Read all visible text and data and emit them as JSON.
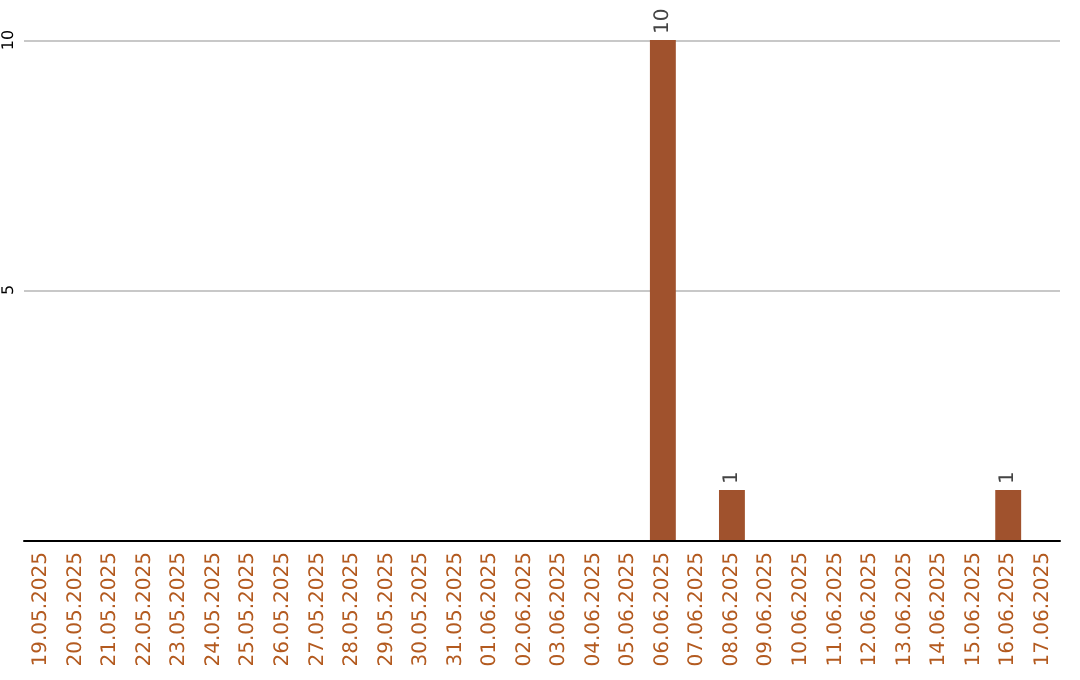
{
  "chart_data": {
    "type": "bar",
    "categories": [
      "19.05.2025",
      "20.05.2025",
      "21.05.2025",
      "22.05.2025",
      "23.05.2025",
      "24.05.2025",
      "25.05.2025",
      "26.05.2025",
      "27.05.2025",
      "28.05.2025",
      "29.05.2025",
      "30.05.2025",
      "31.05.2025",
      "01.06.2025",
      "02.06.2025",
      "03.06.2025",
      "04.06.2025",
      "05.06.2025",
      "06.06.2025",
      "07.06.2025",
      "08.06.2025",
      "09.06.2025",
      "10.06.2025",
      "11.06.2025",
      "12.06.2025",
      "13.06.2025",
      "14.06.2025",
      "15.06.2025",
      "16.06.2025",
      "17.06.2025"
    ],
    "values": [
      0,
      0,
      0,
      0,
      0,
      0,
      0,
      0,
      0,
      0,
      0,
      0,
      0,
      0,
      0,
      0,
      0,
      0,
      10,
      0,
      1,
      0,
      0,
      0,
      0,
      0,
      0,
      0,
      1,
      0
    ],
    "value_labels": [
      null,
      null,
      null,
      null,
      null,
      null,
      null,
      null,
      null,
      null,
      null,
      null,
      null,
      null,
      null,
      null,
      null,
      null,
      "10",
      null,
      "1",
      null,
      null,
      null,
      null,
      null,
      null,
      null,
      "1",
      null
    ],
    "color": "#a0522d",
    "ylim": [
      0,
      10
    ],
    "yticks": [
      5,
      10
    ],
    "grid": "y"
  }
}
